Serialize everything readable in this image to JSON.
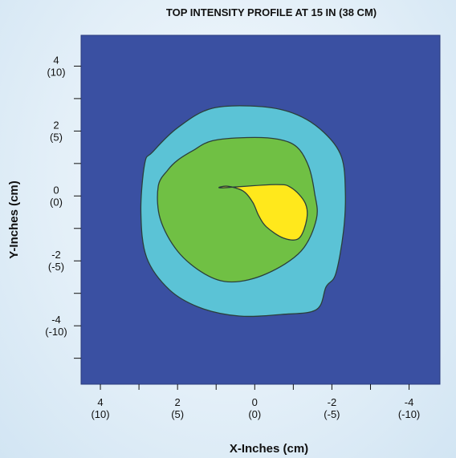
{
  "chart_data": {
    "type": "heatmap",
    "title": "TOP INTENSITY PROFILE AT 15 IN (38 CM)",
    "xlabel": "X-Inches (cm)",
    "ylabel": "Y-Inches (cm)",
    "xlim": [
      4.5,
      -4.8
    ],
    "ylim": [
      -5.8,
      4.95
    ],
    "x_ticks": [
      {
        "value": 4,
        "inches": "4",
        "cm": "(10)"
      },
      {
        "value": 2,
        "inches": "2",
        "cm": "(5)"
      },
      {
        "value": 0,
        "inches": "0",
        "cm": "(0)"
      },
      {
        "value": -2,
        "inches": "-2",
        "cm": "(-5)"
      },
      {
        "value": -4,
        "inches": "-4",
        "cm": "(-10)"
      }
    ],
    "y_ticks": [
      {
        "value": 4,
        "inches": "4",
        "cm": "(10)"
      },
      {
        "value": 2,
        "inches": "2",
        "cm": "(5)"
      },
      {
        "value": 0,
        "inches": "0",
        "cm": "(0)"
      },
      {
        "value": -2,
        "inches": "-2",
        "cm": "(-5)"
      },
      {
        "value": -4,
        "inches": "-4",
        "cm": "(-10)"
      }
    ],
    "minor_tick_step": 1,
    "background_color": "#3a50a2",
    "contours": [
      {
        "level": 1,
        "color": "#5bc3d6",
        "points": [
          [
            2.0,
            2.1
          ],
          [
            1.1,
            2.7
          ],
          [
            -0.2,
            2.75
          ],
          [
            -1.1,
            2.5
          ],
          [
            -1.8,
            1.95
          ],
          [
            -2.25,
            1.2
          ],
          [
            -2.35,
            0.1
          ],
          [
            -2.3,
            -1.1
          ],
          [
            -2.1,
            -2.4
          ],
          [
            -1.85,
            -2.8
          ],
          [
            -1.6,
            -3.5
          ],
          [
            -0.7,
            -3.65
          ],
          [
            0.4,
            -3.7
          ],
          [
            1.4,
            -3.45
          ],
          [
            2.2,
            -2.9
          ],
          [
            2.8,
            -1.9
          ],
          [
            2.95,
            -0.5
          ],
          [
            2.85,
            1.0
          ],
          [
            2.65,
            1.35
          ]
        ]
      },
      {
        "level": 2,
        "color": "#70c044",
        "points": [
          [
            1.6,
            1.4
          ],
          [
            1.1,
            1.7
          ],
          [
            0.2,
            1.8
          ],
          [
            -0.6,
            1.75
          ],
          [
            -1.1,
            1.5
          ],
          [
            -1.4,
            0.9
          ],
          [
            -1.55,
            0.1
          ],
          [
            -1.6,
            -0.7
          ],
          [
            -1.2,
            -1.7
          ],
          [
            -0.3,
            -2.4
          ],
          [
            0.6,
            -2.65
          ],
          [
            1.3,
            -2.4
          ],
          [
            2.0,
            -1.7
          ],
          [
            2.45,
            -0.7
          ],
          [
            2.5,
            0.3
          ],
          [
            2.25,
            0.8
          ],
          [
            2.0,
            1.1
          ]
        ]
      },
      {
        "level": 3,
        "color": "#ffe81c",
        "points": [
          [
            0.85,
            0.25
          ],
          [
            0.7,
            0.3
          ],
          [
            0.3,
            0.15
          ],
          [
            0.05,
            -0.2
          ],
          [
            -0.1,
            -0.6
          ],
          [
            -0.3,
            -0.95
          ],
          [
            -0.75,
            -1.3
          ],
          [
            -1.15,
            -1.3
          ],
          [
            -1.35,
            -0.7
          ],
          [
            -1.3,
            -0.2
          ],
          [
            -0.95,
            0.25
          ],
          [
            -0.55,
            0.35
          ]
        ]
      }
    ]
  }
}
